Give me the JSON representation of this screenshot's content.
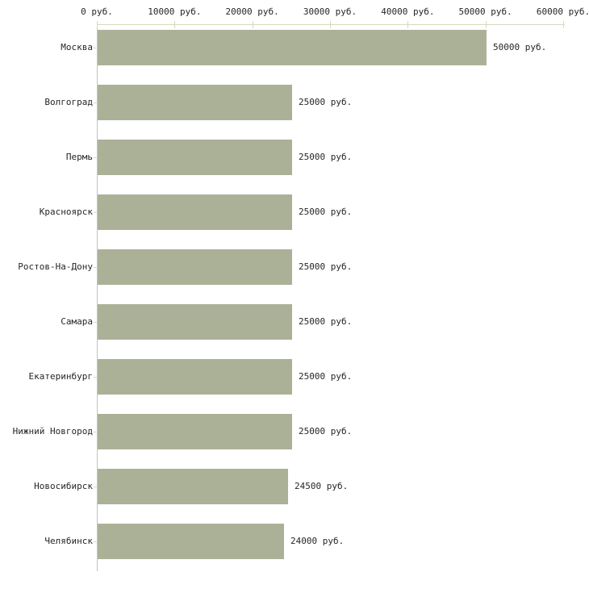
{
  "chart_data": {
    "type": "bar",
    "orientation": "horizontal",
    "title": "",
    "unit": "руб.",
    "categories": [
      "Москва",
      "Волгоград",
      "Пермь",
      "Красноярск",
      "Ростов-На-Дону",
      "Самара",
      "Екатеринбург",
      "Нижний Новгород",
      "Новосибирск",
      "Челябинск"
    ],
    "values": [
      50000,
      25000,
      25000,
      25000,
      25000,
      25000,
      25000,
      25000,
      24500,
      24000
    ],
    "value_labels": [
      "50000 руб.",
      "25000 руб.",
      "25000 руб.",
      "25000 руб.",
      "25000 руб.",
      "25000 руб.",
      "25000 руб.",
      "25000 руб.",
      "24500 руб.",
      "24000 руб."
    ],
    "x_axis": {
      "position": "top",
      "min": 0,
      "max": 60000,
      "ticks": [
        0,
        10000,
        20000,
        30000,
        40000,
        50000,
        60000
      ],
      "tick_labels": [
        "0 руб.",
        "10000 руб.",
        "20000 руб.",
        "30000 руб.",
        "40000 руб.",
        "50000 руб.",
        "60000 руб."
      ]
    },
    "grid": false,
    "legend": false,
    "colors": {
      "bar_fill": "#abb197",
      "axis_line": "#d8d8c0",
      "baseline": "#c3c3c3",
      "text": "#262626",
      "background": "#ffffff"
    }
  }
}
